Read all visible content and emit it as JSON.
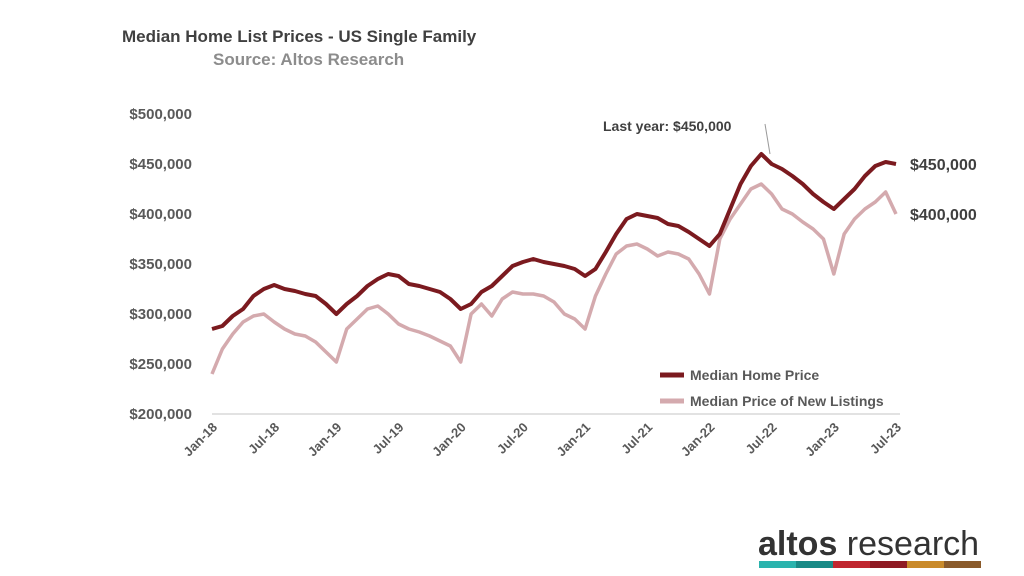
{
  "chart_data": {
    "type": "line",
    "title": "Median Home List Prices - US Single Family",
    "subtitle": "Source: Altos Research",
    "xlabel": "",
    "ylabel": "",
    "ylim": [
      200000,
      500000
    ],
    "y_ticks": [
      "$200,000",
      "$250,000",
      "$300,000",
      "$350,000",
      "$400,000",
      "$450,000",
      "$500,000"
    ],
    "x_ticks": [
      "Jan-18",
      "Jul-18",
      "Jan-19",
      "Jul-19",
      "Jan-20",
      "Jul-20",
      "Jan-21",
      "Jul-21",
      "Jan-22",
      "Jul-22",
      "Jan-23",
      "Jul-23"
    ],
    "x_start": "2018-01",
    "x_frequency": "monthly",
    "grid": false,
    "legend_position": "bottom-right",
    "series": [
      {
        "name": "Median Home Price",
        "color": "#7b1a1f",
        "values": [
          285000,
          288000,
          298000,
          305000,
          318000,
          325000,
          329000,
          325000,
          323000,
          320000,
          318000,
          310000,
          300000,
          310000,
          318000,
          328000,
          335000,
          340000,
          338000,
          330000,
          328000,
          325000,
          322000,
          315000,
          305000,
          310000,
          322000,
          328000,
          338000,
          348000,
          352000,
          355000,
          352000,
          350000,
          348000,
          345000,
          338000,
          345000,
          362000,
          380000,
          395000,
          400000,
          398000,
          396000,
          390000,
          388000,
          382000,
          375000,
          368000,
          380000,
          405000,
          430000,
          448000,
          460000,
          450000,
          445000,
          438000,
          430000,
          420000,
          412000,
          405000,
          415000,
          425000,
          438000,
          448000,
          452000,
          450000
        ]
      },
      {
        "name": "Median Price of New Listings",
        "color": "#d4aaae",
        "values": [
          240000,
          265000,
          280000,
          292000,
          298000,
          300000,
          292000,
          285000,
          280000,
          278000,
          272000,
          262000,
          252000,
          285000,
          295000,
          305000,
          308000,
          300000,
          290000,
          285000,
          282000,
          278000,
          273000,
          268000,
          252000,
          300000,
          310000,
          298000,
          315000,
          322000,
          320000,
          320000,
          318000,
          312000,
          300000,
          295000,
          285000,
          318000,
          340000,
          360000,
          368000,
          370000,
          365000,
          358000,
          362000,
          360000,
          355000,
          340000,
          320000,
          375000,
          395000,
          410000,
          425000,
          430000,
          420000,
          405000,
          400000,
          392000,
          385000,
          375000,
          340000,
          380000,
          395000,
          405000,
          412000,
          422000,
          400000
        ]
      }
    ],
    "annotations": {
      "last_year": "Last year: $450,000",
      "end_label_home": "$450,000",
      "end_label_new": "$400,000"
    }
  },
  "logo": {
    "text_bold": "altos",
    "text_light": " research",
    "stripe_colors": [
      "#2bb3ad",
      "#1a8a86",
      "#c0262f",
      "#8e1a22",
      "#c98a2a",
      "#8a5a2a"
    ]
  }
}
